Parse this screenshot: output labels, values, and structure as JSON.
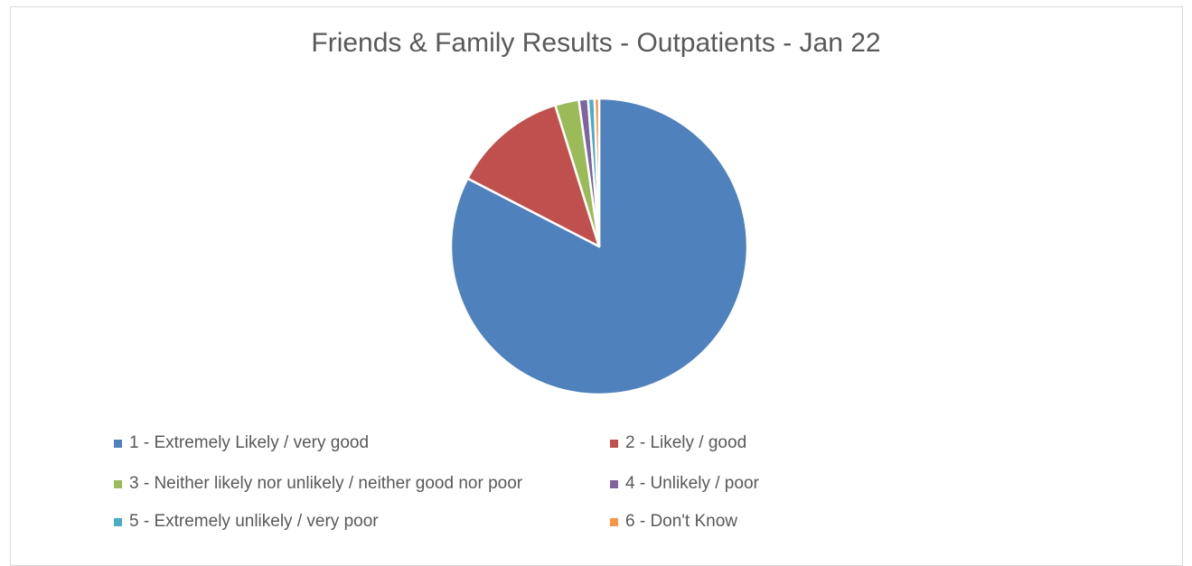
{
  "chart_data": {
    "type": "pie",
    "title": "Friends & Family Results - Outpatients - Jan 22",
    "legend_position": "bottom",
    "series": [
      {
        "values": [
          82.6,
          12.6,
          2.6,
          1.0,
          0.7,
          0.5
        ]
      }
    ],
    "categories": [
      "1 - Extremely Likely / very good",
      "2 - Likely / good",
      "3 - Neither likely nor unlikely / neither good nor poor",
      "4 - Unlikely / poor",
      "5 - Extremely unlikely / very poor",
      "6 - Don't Know"
    ],
    "colors": [
      "#4f81bd",
      "#c0504d",
      "#9bbb59",
      "#8064a2",
      "#4bacc6",
      "#f79646"
    ],
    "start_angle_deg": 0,
    "direction": "clockwise"
  }
}
